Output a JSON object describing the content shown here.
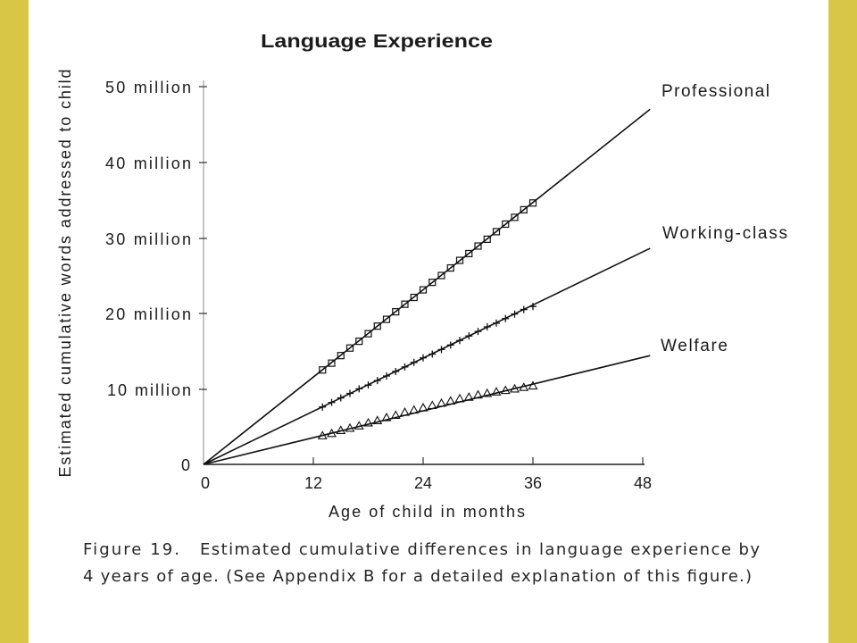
{
  "page": {
    "border_color": "#D8C746",
    "panel_color": "#FFFFFF"
  },
  "chart_data": {
    "type": "line",
    "title": "Language Experience",
    "xlabel": "Age of child in months",
    "ylabel": "Estimated cumulative words addressed to child",
    "x_ticks": [
      "0",
      "12",
      "24",
      "36",
      "48"
    ],
    "y_ticks": [
      "0",
      "10 million",
      "20 million",
      "30 million",
      "40 million",
      "50 million"
    ],
    "xlim": [
      0,
      48
    ],
    "ylim": [
      0,
      50000000
    ],
    "grid": false,
    "x": [
      13,
      14,
      15,
      16,
      17,
      18,
      19,
      20,
      21,
      22,
      23,
      24,
      25,
      26,
      27,
      28,
      29,
      30,
      31,
      32,
      33,
      34,
      35,
      36
    ],
    "series": [
      {
        "name": "Professional",
        "marker": "square",
        "color": "#111111",
        "values": [
          12500000,
          13400000,
          14400000,
          15400000,
          16300000,
          17300000,
          18300000,
          19200000,
          20200000,
          21200000,
          22100000,
          23100000,
          24100000,
          25000000,
          26000000,
          27000000,
          27900000,
          28900000,
          29800000,
          30800000,
          31800000,
          32700000,
          33700000,
          34600000
        ],
        "fit_line": {
          "x": [
            0,
            48.8
          ],
          "y": [
            0,
            47000000
          ]
        }
      },
      {
        "name": "Working-class",
        "marker": "plus",
        "color": "#111111",
        "values": [
          7600000,
          8200000,
          8800000,
          9400000,
          10000000,
          10500000,
          11100000,
          11700000,
          12300000,
          12900000,
          13500000,
          14100000,
          14600000,
          15200000,
          15800000,
          16400000,
          17000000,
          17600000,
          18200000,
          18700000,
          19300000,
          19900000,
          20500000,
          20900000
        ],
        "fit_line": {
          "x": [
            0,
            48.8
          ],
          "y": [
            0,
            28600000
          ]
        }
      },
      {
        "name": "Welfare",
        "marker": "triangle",
        "color": "#111111",
        "values": [
          3800000,
          4100000,
          4500000,
          4800000,
          5100000,
          5500000,
          5800000,
          6200000,
          6500000,
          6900000,
          7200000,
          7500000,
          7800000,
          8100000,
          8400000,
          8700000,
          8900000,
          9200000,
          9400000,
          9600000,
          9800000,
          10000000,
          10200000,
          10400000
        ],
        "fit_line": {
          "x": [
            0,
            48.8
          ],
          "y": [
            0,
            14400000
          ]
        }
      }
    ]
  },
  "caption": {
    "label": "Figure 19.",
    "line1": "Estimated cumulative differences in language experience by",
    "line2": "4 years of age. (See Appendix B for a detailed explanation of this figure.)"
  }
}
